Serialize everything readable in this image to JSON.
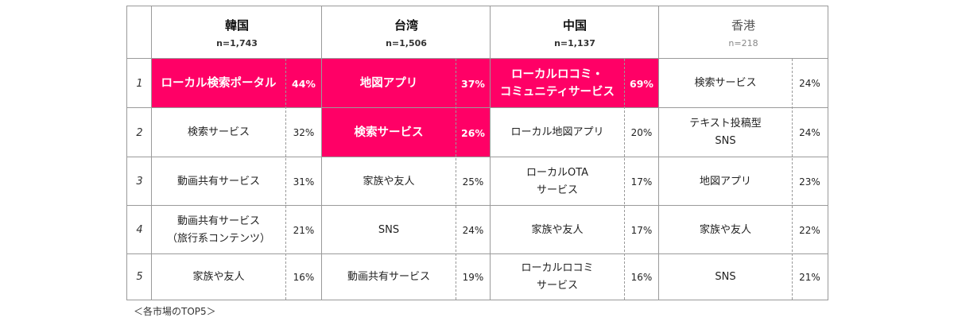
{
  "colors": {
    "highlight": "#ff0066",
    "border": "#9a9a9a"
  },
  "markets": [
    {
      "name": "韓国",
      "n": "n=1,743"
    },
    {
      "name": "台湾",
      "n": "n=1,506"
    },
    {
      "name": "中国",
      "n": "n=1,137"
    },
    {
      "name": "香港",
      "n": "n=218"
    }
  ],
  "ranks": [
    "1",
    "2",
    "3",
    "4",
    "5"
  ],
  "rows": [
    [
      {
        "name": "ローカル検索ポータル",
        "pct": "44%",
        "highlight": true
      },
      {
        "name": "地図アプリ",
        "pct": "37%",
        "highlight": true
      },
      {
        "name": "ローカルロコミ・\nコミュニティサービス",
        "pct": "69%",
        "highlight": true
      },
      {
        "name": "検索サービス",
        "pct": "24%",
        "highlight": false
      }
    ],
    [
      {
        "name": "検索サービス",
        "pct": "32%",
        "highlight": false
      },
      {
        "name": "検索サービス",
        "pct": "26%",
        "highlight": true
      },
      {
        "name": "ローカル地図アプリ",
        "pct": "20%",
        "highlight": false
      },
      {
        "name": "テキスト投稿型\nSNS",
        "pct": "24%",
        "highlight": false
      }
    ],
    [
      {
        "name": "動画共有サービス",
        "pct": "31%",
        "highlight": false
      },
      {
        "name": "家族や友人",
        "pct": "25%",
        "highlight": false
      },
      {
        "name": "ローカルOTA\nサービス",
        "pct": "17%",
        "highlight": false
      },
      {
        "name": "地図アプリ",
        "pct": "23%",
        "highlight": false
      }
    ],
    [
      {
        "name": "動画共有サービス\n（旅行系コンテンツ）",
        "pct": "21%",
        "highlight": false
      },
      {
        "name": "SNS",
        "pct": "24%",
        "highlight": false
      },
      {
        "name": "家族や友人",
        "pct": "17%",
        "highlight": false
      },
      {
        "name": "家族や友人",
        "pct": "22%",
        "highlight": false
      }
    ],
    [
      {
        "name": "家族や友人",
        "pct": "16%",
        "highlight": false
      },
      {
        "name": "動画共有サービス",
        "pct": "19%",
        "highlight": false
      },
      {
        "name": "ローカルロコミ\nサービス",
        "pct": "16%",
        "highlight": false
      },
      {
        "name": "SNS",
        "pct": "21%",
        "highlight": false
      }
    ]
  ],
  "caption": "＜各市場のTOP5＞"
}
